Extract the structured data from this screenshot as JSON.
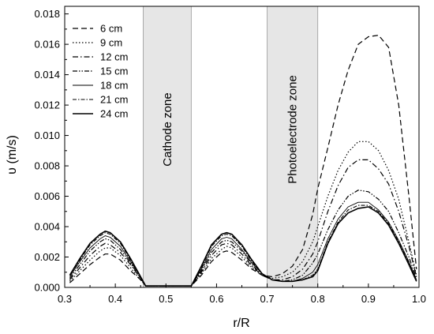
{
  "chart_data": {
    "type": "line",
    "title": "",
    "xlabel": "r/R",
    "ylabel": "υ (m/s)",
    "xlim": [
      0.3,
      1.0
    ],
    "ylim": [
      0.0,
      0.0185
    ],
    "xticks": [
      "0.3",
      "0.4",
      "0.5",
      "0.6",
      "0.7",
      "0.8",
      "0.9",
      "1.0"
    ],
    "yticks": [
      "0.000",
      "0.002",
      "0.004",
      "0.006",
      "0.008",
      "0.010",
      "0.012",
      "0.014",
      "0.016",
      "0.018"
    ],
    "grid": false,
    "legend_position": "top-left",
    "zones": [
      {
        "label": "Cathode zone",
        "x_range": [
          0.455,
          0.55
        ]
      },
      {
        "label": "Photoelectrode zone",
        "x_range": [
          0.7,
          0.8
        ]
      }
    ],
    "x": [
      0.31,
      0.33,
      0.35,
      0.37,
      0.38,
      0.39,
      0.41,
      0.43,
      0.45,
      0.46,
      0.55,
      0.57,
      0.59,
      0.61,
      0.62,
      0.63,
      0.65,
      0.67,
      0.69,
      0.71,
      0.73,
      0.75,
      0.77,
      0.79,
      0.8,
      0.82,
      0.84,
      0.86,
      0.88,
      0.9,
      0.92,
      0.94,
      0.96,
      0.98,
      0.995
    ],
    "series": [
      {
        "name": "6 cm",
        "values": [
          0.0003,
          0.0009,
          0.0015,
          0.002,
          0.0022,
          0.0022,
          0.0018,
          0.0011,
          0.0005,
          0.0001,
          0.0001,
          0.0008,
          0.0017,
          0.0023,
          0.0024,
          0.0023,
          0.0018,
          0.0012,
          0.0008,
          0.0007,
          0.0009,
          0.0014,
          0.0025,
          0.0048,
          0.0065,
          0.0092,
          0.012,
          0.0143,
          0.016,
          0.0165,
          0.0166,
          0.0158,
          0.012,
          0.006,
          0.0012
        ]
      },
      {
        "name": "9 cm",
        "values": [
          0.0004,
          0.0011,
          0.0018,
          0.0024,
          0.0026,
          0.0026,
          0.0021,
          0.0013,
          0.0005,
          0.0001,
          0.0001,
          0.0009,
          0.0019,
          0.0025,
          0.0027,
          0.0026,
          0.002,
          0.0013,
          0.0008,
          0.0006,
          0.0007,
          0.001,
          0.0017,
          0.003,
          0.004,
          0.006,
          0.0077,
          0.0089,
          0.0096,
          0.0096,
          0.009,
          0.0077,
          0.0058,
          0.003,
          0.0008
        ]
      },
      {
        "name": "12 cm",
        "values": [
          0.0005,
          0.0013,
          0.0021,
          0.0027,
          0.0029,
          0.0028,
          0.0023,
          0.0015,
          0.0006,
          0.0001,
          0.0001,
          0.001,
          0.0021,
          0.0028,
          0.0029,
          0.0028,
          0.0022,
          0.0014,
          0.0008,
          0.0005,
          0.0005,
          0.0007,
          0.0012,
          0.0022,
          0.003,
          0.005,
          0.0067,
          0.0079,
          0.0084,
          0.0084,
          0.0078,
          0.0068,
          0.005,
          0.0027,
          0.0007
        ]
      },
      {
        "name": "15 cm",
        "values": [
          0.0006,
          0.0015,
          0.0024,
          0.003,
          0.0032,
          0.0031,
          0.0025,
          0.0016,
          0.0006,
          0.0001,
          0.0001,
          0.0011,
          0.0023,
          0.003,
          0.0031,
          0.003,
          0.0024,
          0.0015,
          0.0008,
          0.0005,
          0.0004,
          0.0005,
          0.0008,
          0.0016,
          0.0022,
          0.0038,
          0.0051,
          0.006,
          0.0064,
          0.0063,
          0.0058,
          0.005,
          0.0036,
          0.002,
          0.0006
        ]
      },
      {
        "name": "18 cm",
        "values": [
          0.0007,
          0.0017,
          0.0026,
          0.0032,
          0.0034,
          0.0033,
          0.0027,
          0.0017,
          0.0007,
          0.0001,
          0.0001,
          0.0012,
          0.0025,
          0.0032,
          0.0033,
          0.0032,
          0.0025,
          0.0016,
          0.0009,
          0.0005,
          0.0004,
          0.0004,
          0.0006,
          0.001,
          0.0015,
          0.0032,
          0.0045,
          0.0053,
          0.0056,
          0.0056,
          0.0051,
          0.0043,
          0.0031,
          0.0017,
          0.0005
        ]
      },
      {
        "name": "21 cm",
        "values": [
          0.0008,
          0.0018,
          0.0028,
          0.0034,
          0.0036,
          0.0035,
          0.0029,
          0.0018,
          0.0007,
          0.0001,
          0.0001,
          0.0013,
          0.0027,
          0.0034,
          0.0035,
          0.0034,
          0.0027,
          0.0017,
          0.0009,
          0.0005,
          0.0004,
          0.0004,
          0.0005,
          0.0008,
          0.0012,
          0.003,
          0.0043,
          0.0051,
          0.0054,
          0.0054,
          0.005,
          0.0042,
          0.003,
          0.0016,
          0.0005
        ]
      },
      {
        "name": "24 cm",
        "values": [
          0.0008,
          0.0019,
          0.0029,
          0.0035,
          0.0037,
          0.0036,
          0.003,
          0.0019,
          0.0007,
          0.0001,
          0.0001,
          0.0014,
          0.0028,
          0.0035,
          0.0036,
          0.0035,
          0.0028,
          0.0018,
          0.0009,
          0.0005,
          0.0004,
          0.0004,
          0.0005,
          0.0007,
          0.0011,
          0.0029,
          0.0042,
          0.0049,
          0.0052,
          0.0053,
          0.0049,
          0.0041,
          0.0029,
          0.0015,
          0.0004
        ]
      }
    ]
  },
  "styles": {
    "zone_fill": "#e6e6e6",
    "zone_stroke": "#999999",
    "line_color": "#000000",
    "dash_patterns": [
      "7,4",
      "1.5,2.5",
      "7,3,1.5,3",
      "6,2,1.5,2,1.5,2",
      "",
      "5,2,1.5,2",
      ""
    ],
    "line_widths": [
      1.2,
      1.2,
      1.2,
      1.2,
      0.9,
      1.1,
      1.6
    ]
  }
}
